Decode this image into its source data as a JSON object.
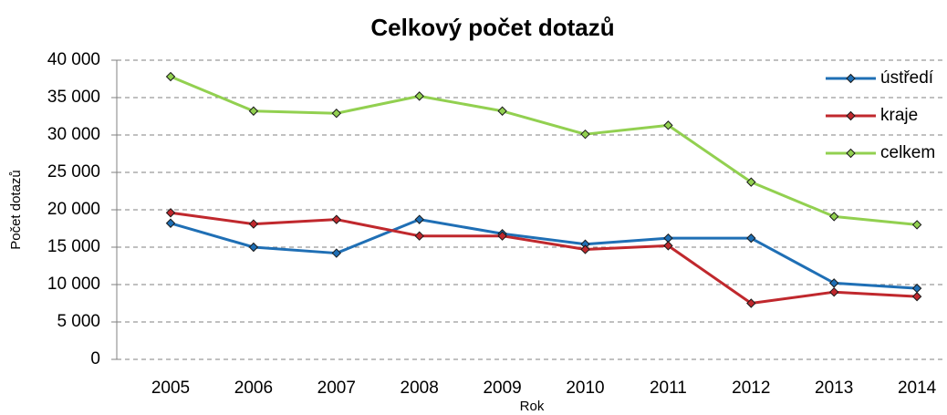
{
  "chart_data": {
    "type": "line",
    "title": "Celkový počet dotazů",
    "x_label": "Rok",
    "y_label": "Počet dotazů",
    "categories": [
      "2005",
      "2006",
      "2007",
      "2008",
      "2009",
      "2010",
      "2011",
      "2012",
      "2013",
      "2014"
    ],
    "series": [
      {
        "name": "ústředí",
        "color": "#1f6fb5",
        "values": [
          18200,
          15000,
          14200,
          18700,
          16800,
          15400,
          16200,
          16200,
          10200,
          9500
        ]
      },
      {
        "name": "kraje",
        "color": "#c0282d",
        "values": [
          19600,
          18100,
          18700,
          16500,
          16500,
          14700,
          15200,
          7500,
          9000,
          8400
        ]
      },
      {
        "name": "celkem",
        "color": "#92d050",
        "values": [
          37800,
          33200,
          32900,
          35200,
          33200,
          30100,
          31300,
          23700,
          19100,
          18000
        ]
      }
    ],
    "ylim": [
      0,
      40000
    ],
    "yticks": [
      0,
      {
        "value": 5000,
        "label": "5 000"
      },
      {
        "value": 10000,
        "label": "10 000"
      },
      {
        "value": 15000,
        "label": "15 000"
      },
      {
        "value": 20000,
        "label": "20 000"
      },
      {
        "value": 25000,
        "label": "25 000"
      },
      {
        "value": 30000,
        "label": "30 000"
      },
      {
        "value": 35000,
        "label": "35 000"
      },
      {
        "value": 40000,
        "label": "40 000"
      }
    ],
    "grid": true,
    "legend": "top-right"
  }
}
